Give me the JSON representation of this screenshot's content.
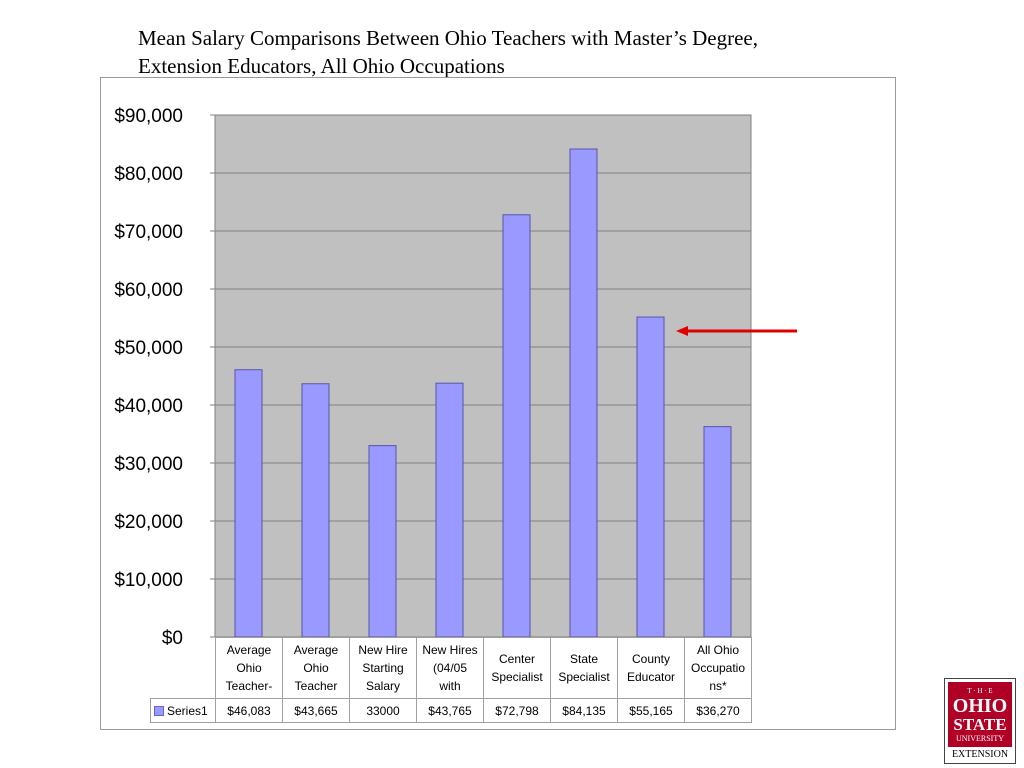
{
  "title": {
    "line1": "Mean Salary Comparisons Between Ohio Teachers with Master’s Degree,",
    "line2": "Extension Educators, All Ohio Occupations"
  },
  "chart_data": {
    "type": "bar",
    "categories": [
      [
        "Average",
        "Ohio",
        "Teacher-"
      ],
      [
        "Average",
        "Ohio",
        "Teacher"
      ],
      [
        "New Hire",
        "Starting",
        "Salary"
      ],
      [
        "New Hires",
        "(04/05",
        "with"
      ],
      [
        "Center",
        "Specialist"
      ],
      [
        "State",
        "Specialist"
      ],
      [
        "County",
        "Educator"
      ],
      [
        "All Ohio",
        "Occupatio",
        "ns*"
      ]
    ],
    "series": [
      {
        "name": "Series1",
        "values": [
          46083,
          43665,
          33000,
          43765,
          72798,
          84135,
          55165,
          36270
        ],
        "value_labels": [
          "$46,083",
          "$43,665",
          "33000",
          "$43,765",
          "$72,798",
          "$84,135",
          "$55,165",
          "$36,270"
        ]
      }
    ],
    "ylim": [
      0,
      90000
    ],
    "y_ticks": [
      0,
      10000,
      20000,
      30000,
      40000,
      50000,
      60000,
      70000,
      80000,
      90000
    ],
    "y_tick_labels": [
      "$0",
      "$10,000",
      "$20,000",
      "$30,000",
      "$40,000",
      "$50,000",
      "$60,000",
      "$70,000",
      "$80,000",
      "$90,000"
    ],
    "grid": true,
    "data_table": true,
    "highlight_arrow_category": 6,
    "colors": {
      "bar_fill": "#9999ff",
      "bar_stroke": "#5555aa",
      "plot_bg": "#c0c0c0",
      "arrow": "#e00000"
    }
  },
  "logo": {
    "text_top": "T · H · E",
    "text_ohio": "OHIO",
    "text_state": "STATE",
    "text_univ": "UNIVERSITY",
    "text_ext": "EXTENSION"
  }
}
